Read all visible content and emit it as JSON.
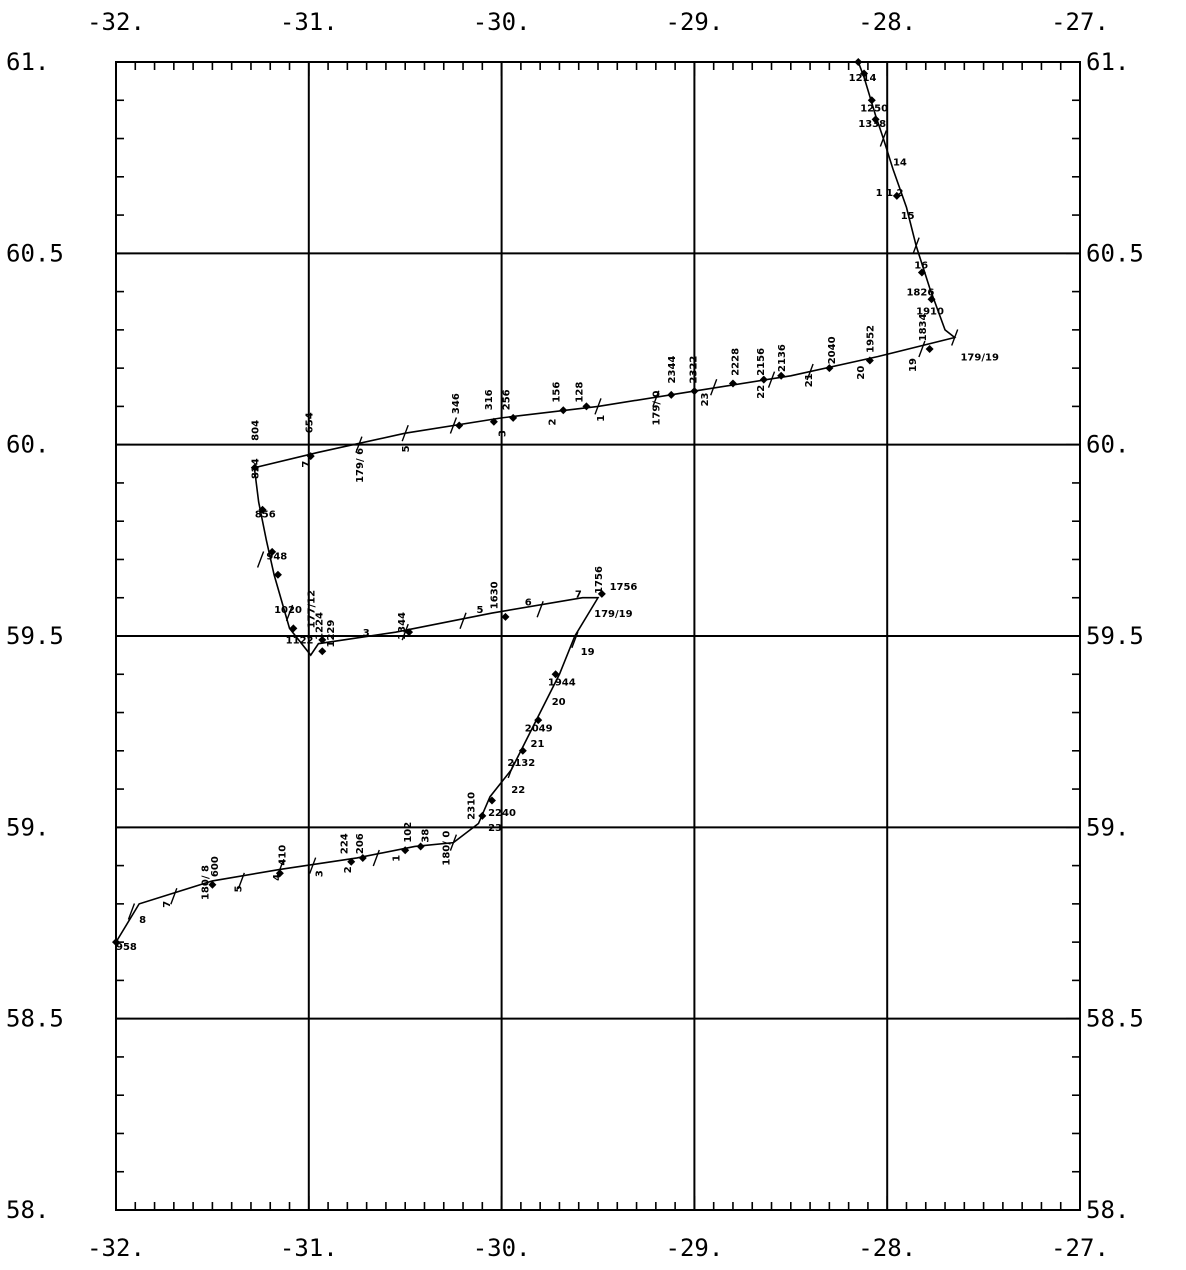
{
  "chart_data": {
    "type": "map-track",
    "xlim": [
      -32,
      -27
    ],
    "ylim": [
      58,
      61
    ],
    "x_ticks": [
      {
        "value": -32,
        "label": "-32."
      },
      {
        "value": -31,
        "label": "-31."
      },
      {
        "value": -30,
        "label": "-30."
      },
      {
        "value": -29,
        "label": "-29."
      },
      {
        "value": -28,
        "label": "-28."
      },
      {
        "value": -27,
        "label": "-27."
      }
    ],
    "y_ticks": [
      {
        "value": 61,
        "label": "61."
      },
      {
        "value": 60.5,
        "label": "60.5"
      },
      {
        "value": 60,
        "label": "60."
      },
      {
        "value": 59.5,
        "label": "59.5"
      },
      {
        "value": 59,
        "label": "59."
      },
      {
        "value": 58.5,
        "label": "58.5"
      },
      {
        "value": 58,
        "label": "58."
      }
    ],
    "grid": true,
    "track": [
      [
        -32.0,
        58.7
      ],
      [
        -31.88,
        58.8
      ],
      [
        -31.5,
        58.86
      ],
      [
        -31.15,
        58.89
      ],
      [
        -30.75,
        58.92
      ],
      [
        -30.45,
        58.95
      ],
      [
        -30.25,
        58.96
      ],
      [
        -30.12,
        59.01
      ],
      [
        -30.06,
        59.08
      ],
      [
        -29.95,
        59.15
      ],
      [
        -29.88,
        59.22
      ],
      [
        -29.8,
        59.3
      ],
      [
        -29.7,
        59.4
      ],
      [
        -29.62,
        59.5
      ],
      [
        -29.5,
        59.6
      ],
      [
        -29.58,
        59.6
      ],
      [
        -30.05,
        59.56
      ],
      [
        -30.55,
        59.51
      ],
      [
        -30.95,
        59.48
      ],
      [
        -30.99,
        59.45
      ],
      [
        -31.1,
        59.52
      ],
      [
        -31.18,
        59.66
      ],
      [
        -31.22,
        59.75
      ],
      [
        -31.26,
        59.85
      ],
      [
        -31.28,
        59.93
      ],
      [
        -31.28,
        59.94
      ],
      [
        -30.95,
        59.98
      ],
      [
        -30.5,
        60.03
      ],
      [
        -30.0,
        60.07
      ],
      [
        -29.5,
        60.1
      ],
      [
        -29.0,
        60.14
      ],
      [
        -28.5,
        60.18
      ],
      [
        -28.05,
        60.23
      ],
      [
        -27.65,
        60.28
      ],
      [
        -27.7,
        60.3
      ],
      [
        -27.78,
        60.41
      ],
      [
        -27.85,
        60.52
      ],
      [
        -27.9,
        60.62
      ],
      [
        -27.97,
        60.72
      ],
      [
        -28.02,
        60.8
      ],
      [
        -28.06,
        60.86
      ],
      [
        -28.12,
        60.96
      ],
      [
        -28.15,
        61.0
      ]
    ],
    "stations": [
      [
        -32.0,
        58.7
      ],
      [
        -31.5,
        58.85
      ],
      [
        -31.15,
        58.88
      ],
      [
        -30.78,
        58.91
      ],
      [
        -30.72,
        58.92
      ],
      [
        -30.5,
        58.94
      ],
      [
        -30.42,
        58.95
      ],
      [
        -30.1,
        59.03
      ],
      [
        -30.05,
        59.07
      ],
      [
        -29.89,
        59.2
      ],
      [
        -29.81,
        59.28
      ],
      [
        -29.72,
        59.4
      ],
      [
        -29.48,
        59.61
      ],
      [
        -29.98,
        59.55
      ],
      [
        -30.48,
        59.51
      ],
      [
        -30.93,
        59.49
      ],
      [
        -30.93,
        59.46
      ],
      [
        -31.08,
        59.52
      ],
      [
        -31.16,
        59.66
      ],
      [
        -31.19,
        59.72
      ],
      [
        -31.24,
        59.83
      ],
      [
        -31.28,
        59.94
      ],
      [
        -30.99,
        59.97
      ],
      [
        -30.22,
        60.05
      ],
      [
        -30.04,
        60.06
      ],
      [
        -29.94,
        60.07
      ],
      [
        -29.68,
        60.09
      ],
      [
        -29.56,
        60.1
      ],
      [
        -29.12,
        60.13
      ],
      [
        -29.0,
        60.14
      ],
      [
        -28.8,
        60.16
      ],
      [
        -28.64,
        60.17
      ],
      [
        -28.55,
        60.18
      ],
      [
        -28.3,
        60.2
      ],
      [
        -28.09,
        60.22
      ],
      [
        -27.78,
        60.25
      ],
      [
        -27.77,
        60.38
      ],
      [
        -27.82,
        60.45
      ],
      [
        -27.95,
        60.65
      ],
      [
        -28.06,
        60.85
      ],
      [
        -28.08,
        60.9
      ],
      [
        -28.12,
        60.97
      ],
      [
        -28.15,
        61.0
      ]
    ],
    "hour_ticks": [
      [
        -31.92,
        58.78
      ],
      [
        -31.7,
        58.82
      ],
      [
        -31.35,
        58.86
      ],
      [
        -31.15,
        58.89
      ],
      [
        -30.98,
        58.9
      ],
      [
        -30.65,
        58.92
      ],
      [
        -30.25,
        58.96
      ],
      [
        -29.95,
        59.15
      ],
      [
        -29.62,
        59.49
      ],
      [
        -29.8,
        59.57
      ],
      [
        -30.2,
        59.54
      ],
      [
        -30.5,
        59.51
      ],
      [
        -31.1,
        59.56
      ],
      [
        -31.25,
        59.7
      ],
      [
        -30.74,
        60.0
      ],
      [
        -30.5,
        60.03
      ],
      [
        -30.25,
        60.05
      ],
      [
        -29.5,
        60.1
      ],
      [
        -29.2,
        60.12
      ],
      [
        -28.9,
        60.15
      ],
      [
        -28.6,
        60.17
      ],
      [
        -28.4,
        60.19
      ],
      [
        -27.82,
        60.25
      ],
      [
        -27.85,
        60.52
      ],
      [
        -28.02,
        60.8
      ],
      [
        -27.65,
        60.28
      ]
    ],
    "annotations": [
      {
        "x": -32.0,
        "y": 58.68,
        "text": "958",
        "rotate": false
      },
      {
        "x": -31.88,
        "y": 58.75,
        "text": "8",
        "rotate": false
      },
      {
        "x": -31.72,
        "y": 58.79,
        "text": "7",
        "rotate": true
      },
      {
        "x": -31.52,
        "y": 58.81,
        "text": "180/ 8",
        "rotate": true
      },
      {
        "x": -31.47,
        "y": 58.87,
        "text": "600",
        "rotate": true
      },
      {
        "x": -31.35,
        "y": 58.83,
        "text": "5",
        "rotate": true
      },
      {
        "x": -31.15,
        "y": 58.86,
        "text": "4",
        "rotate": true
      },
      {
        "x": -31.12,
        "y": 58.9,
        "text": "410",
        "rotate": true
      },
      {
        "x": -30.93,
        "y": 58.87,
        "text": "3",
        "rotate": true
      },
      {
        "x": -30.78,
        "y": 58.88,
        "text": "2",
        "rotate": true
      },
      {
        "x": -30.8,
        "y": 58.93,
        "text": "224",
        "rotate": true
      },
      {
        "x": -30.72,
        "y": 58.93,
        "text": "206",
        "rotate": true
      },
      {
        "x": -30.53,
        "y": 58.91,
        "text": "1",
        "rotate": true
      },
      {
        "x": -30.47,
        "y": 58.96,
        "text": "102",
        "rotate": true
      },
      {
        "x": -30.38,
        "y": 58.96,
        "text": "38",
        "rotate": true
      },
      {
        "x": -30.27,
        "y": 58.9,
        "text": "180/ 0",
        "rotate": true
      },
      {
        "x": -30.14,
        "y": 59.02,
        "text": "2310",
        "rotate": true
      },
      {
        "x": -30.07,
        "y": 59.03,
        "text": "2240",
        "rotate": false
      },
      {
        "x": -30.07,
        "y": 58.99,
        "text": "23",
        "rotate": false
      },
      {
        "x": -29.95,
        "y": 59.09,
        "text": "22",
        "rotate": false
      },
      {
        "x": -29.97,
        "y": 59.16,
        "text": "2132",
        "rotate": false
      },
      {
        "x": -29.85,
        "y": 59.21,
        "text": "21",
        "rotate": false
      },
      {
        "x": -29.88,
        "y": 59.25,
        "text": "2049",
        "rotate": false
      },
      {
        "x": -29.74,
        "y": 59.32,
        "text": "20",
        "rotate": false
      },
      {
        "x": -29.76,
        "y": 59.37,
        "text": "1944",
        "rotate": false
      },
      {
        "x": -29.59,
        "y": 59.45,
        "text": "19",
        "rotate": false
      },
      {
        "x": -29.52,
        "y": 59.55,
        "text": "179/19",
        "rotate": false
      },
      {
        "x": -29.48,
        "y": 59.61,
        "text": "1756",
        "rotate": true
      },
      {
        "x": -29.44,
        "y": 59.62,
        "text": "1756",
        "rotate": false
      },
      {
        "x": -29.62,
        "y": 59.6,
        "text": "7",
        "rotate": false
      },
      {
        "x": -29.88,
        "y": 59.58,
        "text": "6",
        "rotate": false
      },
      {
        "x": -30.02,
        "y": 59.57,
        "text": "1630",
        "rotate": true
      },
      {
        "x": -30.13,
        "y": 59.56,
        "text": "5",
        "rotate": false
      },
      {
        "x": -30.5,
        "y": 59.49,
        "text": "1344",
        "rotate": true
      },
      {
        "x": -30.72,
        "y": 59.5,
        "text": "3",
        "rotate": false
      },
      {
        "x": -30.93,
        "y": 59.49,
        "text": "1224",
        "rotate": true
      },
      {
        "x": -30.87,
        "y": 59.47,
        "text": "1229",
        "rotate": true
      },
      {
        "x": -30.97,
        "y": 59.52,
        "text": "177/12",
        "rotate": true
      },
      {
        "x": -31.12,
        "y": 59.48,
        "text": "1122",
        "rotate": false
      },
      {
        "x": -31.18,
        "y": 59.56,
        "text": "1020",
        "rotate": false
      },
      {
        "x": -31.22,
        "y": 59.7,
        "text": "948",
        "rotate": false
      },
      {
        "x": -31.28,
        "y": 59.81,
        "text": "856",
        "rotate": false
      },
      {
        "x": -31.26,
        "y": 59.91,
        "text": "824",
        "rotate": true
      },
      {
        "x": -31.26,
        "y": 60.01,
        "text": "804",
        "rotate": true
      },
      {
        "x": -31.0,
        "y": 59.94,
        "text": "7",
        "rotate": true
      },
      {
        "x": -30.98,
        "y": 60.03,
        "text": "654",
        "rotate": true
      },
      {
        "x": -30.72,
        "y": 59.9,
        "text": "179/ 6",
        "rotate": true
      },
      {
        "x": -30.48,
        "y": 59.98,
        "text": "5",
        "rotate": true
      },
      {
        "x": -30.22,
        "y": 60.08,
        "text": "346",
        "rotate": true
      },
      {
        "x": -30.05,
        "y": 60.09,
        "text": "316",
        "rotate": true
      },
      {
        "x": -29.96,
        "y": 60.09,
        "text": "256",
        "rotate": true
      },
      {
        "x": -29.98,
        "y": 60.02,
        "text": "3",
        "rotate": true
      },
      {
        "x": -29.72,
        "y": 60.05,
        "text": "2",
        "rotate": true
      },
      {
        "x": -29.7,
        "y": 60.11,
        "text": "156",
        "rotate": true
      },
      {
        "x": -29.58,
        "y": 60.11,
        "text": "128",
        "rotate": true
      },
      {
        "x": -29.47,
        "y": 60.06,
        "text": "1",
        "rotate": true
      },
      {
        "x": -29.18,
        "y": 60.05,
        "text": "179/ 0",
        "rotate": true
      },
      {
        "x": -29.1,
        "y": 60.16,
        "text": "2344",
        "rotate": true
      },
      {
        "x": -28.99,
        "y": 60.16,
        "text": "2322",
        "rotate": true
      },
      {
        "x": -28.93,
        "y": 60.1,
        "text": "23",
        "rotate": true
      },
      {
        "x": -28.77,
        "y": 60.18,
        "text": "2228",
        "rotate": true
      },
      {
        "x": -28.64,
        "y": 60.12,
        "text": "22",
        "rotate": true
      },
      {
        "x": -28.64,
        "y": 60.18,
        "text": "2156",
        "rotate": true
      },
      {
        "x": -28.53,
        "y": 60.19,
        "text": "2136",
        "rotate": true
      },
      {
        "x": -28.39,
        "y": 60.15,
        "text": "21",
        "rotate": true
      },
      {
        "x": -28.27,
        "y": 60.21,
        "text": "2040",
        "rotate": true
      },
      {
        "x": -28.12,
        "y": 60.17,
        "text": "20",
        "rotate": true
      },
      {
        "x": -28.07,
        "y": 60.24,
        "text": "1952",
        "rotate": true
      },
      {
        "x": -27.85,
        "y": 60.19,
        "text": "19",
        "rotate": true
      },
      {
        "x": -27.62,
        "y": 60.22,
        "text": "179/19",
        "rotate": false
      },
      {
        "x": -27.8,
        "y": 60.27,
        "text": "1834",
        "rotate": true
      },
      {
        "x": -27.85,
        "y": 60.34,
        "text": "1910",
        "rotate": false
      },
      {
        "x": -27.9,
        "y": 60.39,
        "text": "1826",
        "rotate": false
      },
      {
        "x": -27.86,
        "y": 60.46,
        "text": "16",
        "rotate": false
      },
      {
        "x": -27.93,
        "y": 60.59,
        "text": "15",
        "rotate": false
      },
      {
        "x": -28.06,
        "y": 60.65,
        "text": "1 1 2",
        "rotate": false
      },
      {
        "x": -27.97,
        "y": 60.73,
        "text": "14",
        "rotate": false
      },
      {
        "x": -28.15,
        "y": 60.83,
        "text": "1338",
        "rotate": false
      },
      {
        "x": -28.14,
        "y": 60.87,
        "text": "1250",
        "rotate": false
      },
      {
        "x": -28.2,
        "y": 60.95,
        "text": "1214",
        "rotate": false
      }
    ]
  }
}
